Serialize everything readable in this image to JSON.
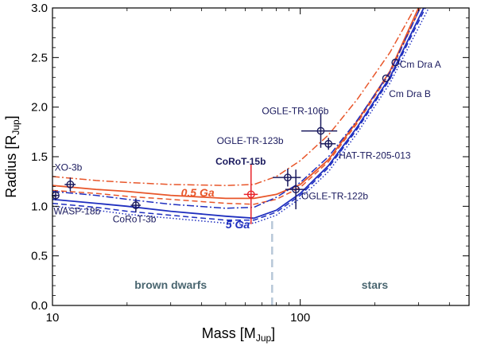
{
  "chart_data": {
    "type": "line",
    "x_scale": "log",
    "xlabel": {
      "main": "Mass [M",
      "sub": "Jup",
      "close": "]"
    },
    "ylabel": {
      "main": "Radius [R",
      "sub": "Jup",
      "close": "]"
    },
    "xlim": [
      10,
      480
    ],
    "ylim": [
      0,
      3.0
    ],
    "x_ticks": [
      {
        "value": 10,
        "label": "10"
      },
      {
        "value": 100,
        "label": "100"
      }
    ],
    "y_ticks": [
      {
        "value": 0.0,
        "label": "0.0"
      },
      {
        "value": 0.5,
        "label": "0.5"
      },
      {
        "value": 1.0,
        "label": "1.0"
      },
      {
        "value": 1.5,
        "label": "1.5"
      },
      {
        "value": 2.0,
        "label": "2.0"
      },
      {
        "value": 2.5,
        "label": "2.5"
      },
      {
        "value": 3.0,
        "label": "3.0"
      }
    ],
    "colors": {
      "orange": "#e8562a",
      "blue": "#1f2fbf",
      "red": "#e8232a",
      "navy": "#1a1a5e",
      "divider": "#b8c8d8",
      "region": "#4a6670"
    },
    "series": [
      {
        "name": "0.5 Ga dash-dot",
        "color": "orange",
        "style": "dashdot",
        "points": [
          [
            10,
            1.3
          ],
          [
            15,
            1.26
          ],
          [
            20,
            1.24
          ],
          [
            30,
            1.22
          ],
          [
            50,
            1.21
          ],
          [
            65,
            1.22
          ],
          [
            80,
            1.3
          ],
          [
            100,
            1.46
          ],
          [
            130,
            1.72
          ],
          [
            170,
            2.08
          ],
          [
            230,
            2.55
          ],
          [
            290,
            3.0
          ]
        ]
      },
      {
        "name": "0.5 Ga solid",
        "color": "orange",
        "style": "solid",
        "points": [
          [
            10,
            1.21
          ],
          [
            15,
            1.17
          ],
          [
            20,
            1.15
          ],
          [
            30,
            1.11
          ],
          [
            50,
            1.08
          ],
          [
            65,
            1.08
          ],
          [
            80,
            1.12
          ],
          [
            100,
            1.22
          ],
          [
            130,
            1.47
          ],
          [
            170,
            1.86
          ],
          [
            230,
            2.36
          ],
          [
            300,
            3.0
          ]
        ]
      },
      {
        "name": "0.5 Ga dashed",
        "color": "orange",
        "style": "dashed",
        "points": [
          [
            10,
            1.16
          ],
          [
            15,
            1.13
          ],
          [
            20,
            1.1
          ],
          [
            30,
            1.07
          ],
          [
            50,
            1.03
          ],
          [
            65,
            1.02
          ],
          [
            80,
            1.07
          ],
          [
            100,
            1.19
          ],
          [
            130,
            1.45
          ],
          [
            170,
            1.84
          ],
          [
            230,
            2.34
          ],
          [
            305,
            3.0
          ]
        ]
      },
      {
        "name": "5 Ga dash-dot",
        "color": "blue",
        "style": "dashdot",
        "points": [
          [
            10,
            1.15
          ],
          [
            15,
            1.11
          ],
          [
            20,
            1.07
          ],
          [
            30,
            1.02
          ],
          [
            50,
            0.98
          ],
          [
            65,
            0.99
          ],
          [
            80,
            1.09
          ],
          [
            100,
            1.24
          ],
          [
            130,
            1.5
          ],
          [
            170,
            1.87
          ],
          [
            230,
            2.35
          ],
          [
            305,
            3.0
          ]
        ]
      },
      {
        "name": "5 Ga solid",
        "color": "blue",
        "style": "solid",
        "points": [
          [
            10,
            1.07
          ],
          [
            15,
            1.03
          ],
          [
            20,
            1.0
          ],
          [
            30,
            0.95
          ],
          [
            50,
            0.9
          ],
          [
            65,
            0.88
          ],
          [
            80,
            0.96
          ],
          [
            100,
            1.13
          ],
          [
            130,
            1.41
          ],
          [
            170,
            1.8
          ],
          [
            230,
            2.3
          ],
          [
            315,
            3.0
          ]
        ]
      },
      {
        "name": "5 Ga dashed",
        "color": "blue",
        "style": "dashed",
        "points": [
          [
            10,
            1.03
          ],
          [
            15,
            0.99
          ],
          [
            20,
            0.95
          ],
          [
            30,
            0.91
          ],
          [
            50,
            0.86
          ],
          [
            65,
            0.86
          ],
          [
            80,
            0.94
          ],
          [
            100,
            1.11
          ],
          [
            130,
            1.39
          ],
          [
            170,
            1.78
          ],
          [
            230,
            2.28
          ],
          [
            320,
            3.0
          ]
        ]
      },
      {
        "name": "5 Ga dotted",
        "color": "blue",
        "style": "dotted",
        "points": [
          [
            10,
            1.0
          ],
          [
            15,
            0.96
          ],
          [
            20,
            0.92
          ],
          [
            30,
            0.88
          ],
          [
            50,
            0.83
          ],
          [
            65,
            0.83
          ],
          [
            80,
            0.91
          ],
          [
            100,
            1.08
          ],
          [
            130,
            1.35
          ],
          [
            170,
            1.74
          ],
          [
            230,
            2.24
          ],
          [
            330,
            3.0
          ]
        ]
      }
    ],
    "curve_labels": [
      {
        "text": "0.5 Ga",
        "x": 33,
        "y": 1.1,
        "color": "orange"
      },
      {
        "text": "5 Ga",
        "x": 50,
        "y": 0.78,
        "color": "blue"
      }
    ],
    "objects": [
      {
        "name": "XO-3b",
        "mass": 11.8,
        "radius": 1.22,
        "xerr": 0.6,
        "yerr": 0.07,
        "color": "navy",
        "label_mass": 10.2,
        "label_radius": 1.36
      },
      {
        "name": "WASP-18b",
        "mass": 10.3,
        "radius": 1.11,
        "xerr": 0.3,
        "yerr": 0.05,
        "color": "navy",
        "label_mass": 10.1,
        "label_radius": 0.92
      },
      {
        "name": "CoRoT-3b",
        "mass": 21.7,
        "radius": 1.01,
        "xerr": 1.0,
        "yerr": 0.07,
        "color": "navy",
        "label_mass": 17.5,
        "label_radius": 0.84
      },
      {
        "name": "CoRoT-15b",
        "mass": 63.3,
        "radius": 1.12,
        "xerr": 4.1,
        "yerr": 0.3,
        "color": "red",
        "label_mass": 45.5,
        "label_radius": 1.42,
        "highlight": true
      },
      {
        "name": "OGLE-TR-123b",
        "mass": 89,
        "radius": 1.29,
        "xerr": 11.5,
        "yerr": 0.09,
        "color": "navy",
        "label_mass": 46,
        "label_radius": 1.63
      },
      {
        "name": "OGLE-TR-122b",
        "mass": 96,
        "radius": 1.17,
        "xerr": 9,
        "yerr": 0.2,
        "color": "navy",
        "label_mass": 101,
        "label_radius": 1.07
      },
      {
        "name": "OGLE-TR-106b",
        "mass": 121,
        "radius": 1.76,
        "xerr": 20,
        "yerr": 0.17,
        "color": "navy",
        "label_mass": 70,
        "label_radius": 1.93
      },
      {
        "name": "HAT-TR-205-013",
        "mass": 130,
        "radius": 1.63,
        "xerr": 9,
        "yerr": 0.06,
        "color": "navy",
        "label_mass": 143,
        "label_radius": 1.48
      },
      {
        "name": "Cm Dra A",
        "mass": 242,
        "radius": 2.45,
        "xerr": 0,
        "yerr": 0,
        "color": "navy",
        "label_mass": 252,
        "label_radius": 2.4
      },
      {
        "name": "Cm Dra B",
        "mass": 222,
        "radius": 2.29,
        "xerr": 0,
        "yerr": 0,
        "color": "navy",
        "label_mass": 228,
        "label_radius": 2.1
      }
    ],
    "divider_mass": 77,
    "regions": [
      {
        "text": "brown dwarfs",
        "x": 30,
        "y": 0.17
      },
      {
        "text": "stars",
        "x": 200,
        "y": 0.17
      }
    ]
  }
}
